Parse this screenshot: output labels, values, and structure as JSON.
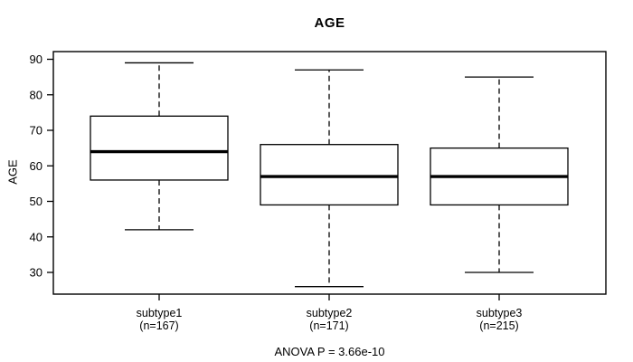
{
  "chart_data": {
    "type": "boxplot",
    "title": "AGE",
    "ylabel": "AGE",
    "xlabel": "",
    "annotation": "ANOVA P = 3.66e-10",
    "yticks": [
      30,
      40,
      50,
      60,
      70,
      80,
      90
    ],
    "ylim": [
      24,
      92
    ],
    "grid": false,
    "legend": "none",
    "categories": [
      "subtype1",
      "subtype2",
      "subtype3"
    ],
    "sample_size_labels": [
      "(n=167)",
      "(n=171)",
      "(n=215)"
    ],
    "series": [
      {
        "name": "subtype1",
        "n": 167,
        "whisker_low": 42,
        "q1": 56,
        "median": 64,
        "q3": 74,
        "whisker_high": 89
      },
      {
        "name": "subtype2",
        "n": 171,
        "whisker_low": 26,
        "q1": 49,
        "median": 57,
        "q3": 66,
        "whisker_high": 87
      },
      {
        "name": "subtype3",
        "n": 215,
        "whisker_low": 30,
        "q1": 49,
        "median": 57,
        "q3": 65,
        "whisker_high": 85
      }
    ],
    "colors": {
      "line": "#000000",
      "box_fill": "#ffffff",
      "background": "#ffffff"
    }
  }
}
